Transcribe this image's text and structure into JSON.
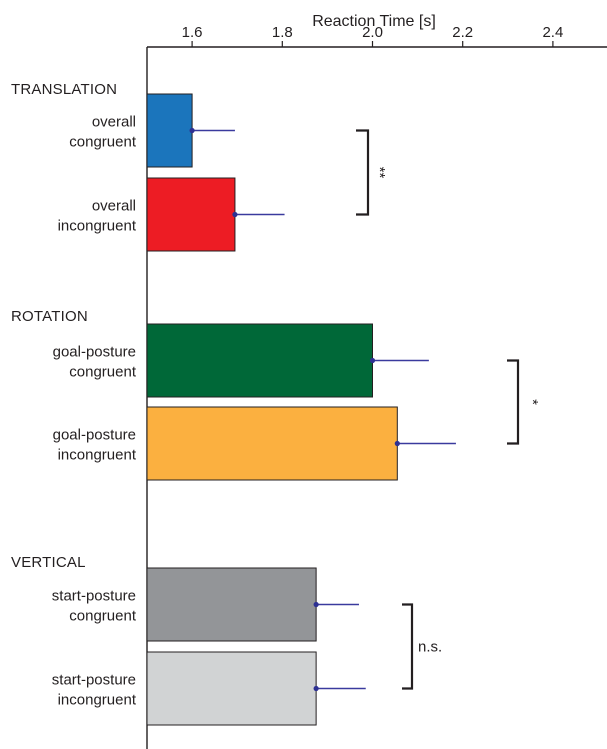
{
  "chart_data": {
    "type": "bar",
    "orientation": "horizontal",
    "xlabel": "Reaction Time [s]",
    "xlim": [
      1.5,
      2.6
    ],
    "xticks": [
      "1.6",
      "1.8",
      "2.0",
      "2.2",
      "2.4"
    ],
    "groups": [
      {
        "label": "TRANSLATION",
        "bars": [
          {
            "line1": "overall",
            "line2": "congruent",
            "value": 1.6,
            "error": 0.095,
            "color": "#1b75bc"
          },
          {
            "line1": "overall",
            "line2": "incongruent",
            "value": 1.695,
            "error": 0.11,
            "color": "#ed1c24"
          }
        ],
        "significance": "**"
      },
      {
        "label": "ROTATION",
        "bars": [
          {
            "line1": "goal-posture",
            "line2": "congruent",
            "value": 2.0,
            "error": 0.125,
            "color": "#006838"
          },
          {
            "line1": "goal-posture",
            "line2": "incongruent",
            "value": 2.055,
            "error": 0.13,
            "color": "#fbb040"
          }
        ],
        "significance": "*"
      },
      {
        "label": "VERTICAL",
        "bars": [
          {
            "line1": "start-posture",
            "line2": "congruent",
            "value": 1.875,
            "error": 0.095,
            "color": "#939598"
          },
          {
            "line1": "start-posture",
            "line2": "incongruent",
            "value": 1.875,
            "error": 0.11,
            "color": "#d1d3d4"
          }
        ],
        "significance": "n.s."
      }
    ]
  }
}
